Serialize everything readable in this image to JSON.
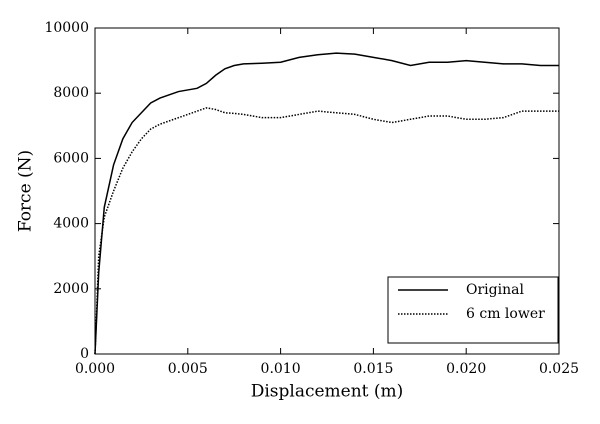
{
  "chart_data": {
    "type": "line",
    "xlabel": "Displacement (m)",
    "ylabel": "Force (N)",
    "x": [
      0,
      0.0002,
      0.0005,
      0.001,
      0.0015,
      0.002,
      0.0025,
      0.003,
      0.0035,
      0.004,
      0.0045,
      0.005,
      0.0055,
      0.006,
      0.0065,
      0.007,
      0.0075,
      0.008,
      0.009,
      0.01,
      0.011,
      0.012,
      0.013,
      0.014,
      0.015,
      0.016,
      0.017,
      0.018,
      0.019,
      0.02,
      0.021,
      0.022,
      0.023,
      0.024,
      0.025
    ],
    "series": [
      {
        "name": "Original",
        "color": "#000000",
        "linestyle": "solid",
        "values": [
          0,
          2500,
          4500,
          5800,
          6600,
          7100,
          7400,
          7700,
          7850,
          7950,
          8050,
          8100,
          8150,
          8300,
          8550,
          8750,
          8850,
          8900,
          8920,
          8950,
          9100,
          9180,
          9230,
          9200,
          9100,
          9000,
          8850,
          8950,
          8950,
          9000,
          8950,
          8900,
          8900,
          8850,
          8850
        ]
      },
      {
        "name": "6 cm lower",
        "color": "#000000",
        "linestyle": "dotted",
        "values": [
          0,
          3000,
          4200,
          5000,
          5700,
          6200,
          6600,
          6900,
          7050,
          7150,
          7250,
          7350,
          7450,
          7550,
          7500,
          7400,
          7380,
          7350,
          7250,
          7250,
          7350,
          7450,
          7400,
          7350,
          7200,
          7100,
          7200,
          7300,
          7300,
          7200,
          7200,
          7250,
          7450,
          7450,
          7450
        ]
      }
    ],
    "xlim": [
      0,
      0.025
    ],
    "xticks": [
      {
        "value": 0,
        "label": "0.000"
      },
      {
        "value": 0.005,
        "label": "0.005"
      },
      {
        "value": 0.01,
        "label": "0.010"
      },
      {
        "value": 0.015,
        "label": "0.015"
      },
      {
        "value": 0.02,
        "label": "0.020"
      },
      {
        "value": 0.025,
        "label": "0.025"
      }
    ],
    "ylim": [
      0,
      10000
    ],
    "yticks": [
      0,
      2000,
      4000,
      6000,
      8000,
      10000
    ],
    "grid": false,
    "legend": "lower right"
  }
}
